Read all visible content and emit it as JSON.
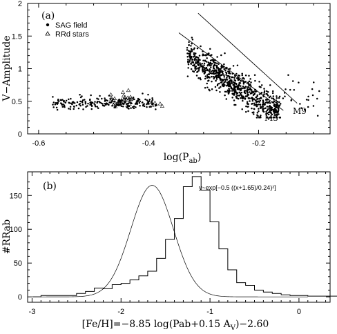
{
  "chart_data": [
    {
      "type": "scatter",
      "panel_label": "(a)",
      "xlabel": "log(P",
      "xlabel_sub": "ab",
      "xlabel_end": ")",
      "ylabel": "V−Amplitude",
      "xlim": [
        -0.62,
        -0.07
      ],
      "ylim": [
        0,
        2
      ],
      "xticks": [
        -0.6,
        -0.4,
        -0.2
      ],
      "xtick_labels": [
        "-0.6",
        "-0.4",
        "-0.2"
      ],
      "yticks": [
        0,
        0.5,
        1,
        1.5,
        2
      ],
      "ytick_labels": [
        "0",
        "0.5",
        "1",
        "1.5",
        "2"
      ],
      "legend": [
        {
          "name": "SAG field",
          "marker": "filled-circle"
        },
        {
          "name": "RRd stars",
          "marker": "open-triangle"
        }
      ],
      "lines": [
        {
          "name": "M3",
          "x": [
            -0.345,
            -0.155
          ],
          "y": [
            1.55,
            0.36
          ]
        },
        {
          "name": "M9",
          "x": [
            -0.31,
            -0.13
          ],
          "y": [
            1.85,
            0.47
          ]
        }
      ],
      "clusters": [
        {
          "series": "SAG field",
          "n": 220,
          "x": [
            -0.575,
            -0.385
          ],
          "slope": 0,
          "intercept": 0.47,
          "spread": 0.05
        },
        {
          "series": "SAG field",
          "n": 800,
          "x": [
            -0.33,
            -0.16
          ],
          "slope": -5.3,
          "intercept": -0.55,
          "spread": 0.12
        },
        {
          "series": "SAG field",
          "n": 25,
          "x": [
            -0.16,
            -0.08
          ],
          "slope": -2.5,
          "intercept": 0.3,
          "spread": 0.15
        },
        {
          "series": "RRd stars",
          "n": 30,
          "x": [
            -0.47,
            -0.43
          ],
          "slope": 0,
          "intercept": 0.5,
          "spread": 0.07
        },
        {
          "series": "RRd stars",
          "n": 5,
          "x": [
            -0.395,
            -0.375
          ],
          "slope": 0,
          "intercept": 0.46,
          "spread": 0.04
        }
      ]
    },
    {
      "type": "histogram",
      "panel_label": "(b)",
      "formula": "y~exp[−0.5 ((x+1.65)/0.24)²]",
      "xlabel": "[Fe/H]=−8.85 log(Pab+0.15 A",
      "xlabel_sub": "V",
      "xlabel_end": ")−2.60",
      "ylabel": "#RRab",
      "xlim": [
        -3.05,
        0.35
      ],
      "ylim": [
        -8,
        185
      ],
      "xticks": [
        -3,
        -2,
        -1,
        0
      ],
      "xtick_labels": [
        "-3",
        "-2",
        "-1",
        "0"
      ],
      "yticks": [
        0,
        50,
        100,
        150
      ],
      "ytick_labels": [
        "0",
        "50",
        "100",
        "150"
      ],
      "bin_width": 0.1,
      "bin_edges_start": -3.0,
      "counts": [
        0,
        2,
        2,
        2,
        2,
        5,
        8,
        13,
        12,
        18,
        20,
        25,
        31,
        38,
        57,
        85,
        116,
        163,
        178,
        158,
        111,
        71,
        40,
        21,
        17,
        10,
        7,
        5,
        3,
        2,
        2,
        1,
        1,
        1,
        1,
        1,
        0,
        0,
        0,
        0,
        0,
        0
      ],
      "gaussian": {
        "mu": -1.65,
        "sigma": 0.24,
        "amp": 165
      }
    }
  ]
}
